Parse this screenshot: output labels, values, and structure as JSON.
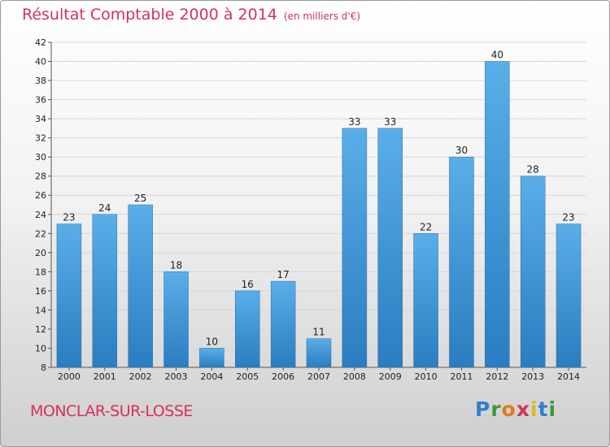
{
  "header": {
    "title": "Résultat Comptable 2000 à 2014",
    "unit": "(en milliers d'€)"
  },
  "footer": {
    "place": "MONCLAR-SUR-LOSSE",
    "logo_letters": [
      {
        "ch": "P",
        "color": "#2f7fcf"
      },
      {
        "ch": "r",
        "color": "#3a9a3a"
      },
      {
        "ch": "o",
        "color": "#e07a1a"
      },
      {
        "ch": "x",
        "color": "#d8305a"
      },
      {
        "ch": "i",
        "color": "#e0b81a"
      },
      {
        "ch": "t",
        "color": "#2f7fcf"
      },
      {
        "ch": "i",
        "color": "#3a9a3a"
      }
    ]
  },
  "colors": {
    "accent": "#d8305a",
    "bar_top": "#5aaee8",
    "bar_bottom": "#2a7dc0"
  },
  "chart_data": {
    "type": "bar",
    "title": "Résultat Comptable 2000 à 2014",
    "subtitle": "(en milliers d'€)",
    "xlabel": "",
    "ylabel": "",
    "categories": [
      "2000",
      "2001",
      "2002",
      "2003",
      "2004",
      "2005",
      "2006",
      "2007",
      "2008",
      "2009",
      "2010",
      "2011",
      "2012",
      "2013",
      "2014"
    ],
    "values": [
      23,
      24,
      25,
      18,
      10,
      16,
      17,
      11,
      33,
      33,
      22,
      30,
      40,
      28,
      23
    ],
    "ylim": [
      8,
      42
    ],
    "yticks": [
      8,
      10,
      12,
      14,
      16,
      18,
      20,
      22,
      24,
      26,
      28,
      30,
      32,
      34,
      36,
      38,
      40,
      42
    ],
    "grid": true,
    "legend": "none"
  }
}
